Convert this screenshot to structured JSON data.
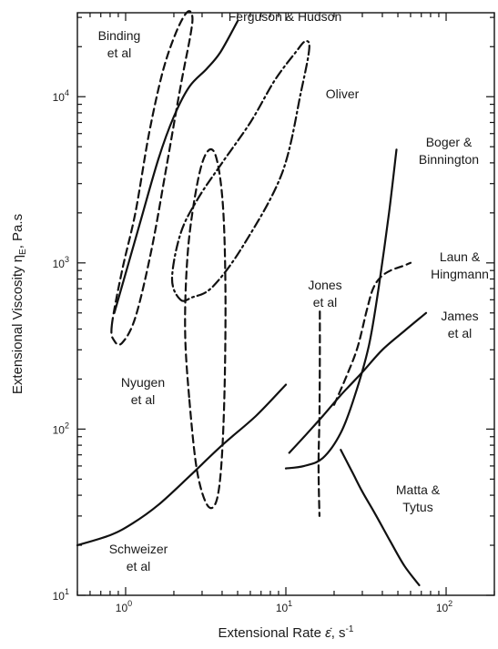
{
  "chart_data": {
    "type": "line",
    "x_scale": "log",
    "y_scale": "log",
    "xlim": [
      0.5,
      200
    ],
    "ylim": [
      10,
      32000
    ],
    "xlabel_main": "Extensional Rate ",
    "xlabel_symbol": "ε̇",
    "xlabel_unit": ", s",
    "xlabel_exp": "-1",
    "ylabel_main": "Extensional Viscosity η",
    "ylabel_sub": "E",
    "ylabel_unit": ", Pa.s",
    "x_ticks": [
      {
        "value": 1,
        "base": "10",
        "exp": "0"
      },
      {
        "value": 10,
        "base": "10",
        "exp": "1"
      },
      {
        "value": 100,
        "base": "10",
        "exp": "2"
      }
    ],
    "y_ticks": [
      {
        "value": 10,
        "base": "10",
        "exp": "1"
      },
      {
        "value": 100,
        "base": "10",
        "exp": "2"
      },
      {
        "value": 1000,
        "base": "10",
        "exp": "3"
      },
      {
        "value": 10000,
        "base": "10",
        "exp": "4"
      }
    ],
    "grid": false,
    "series": [
      {
        "name_lines": [
          "Binding",
          "et al"
        ],
        "style": "dashed",
        "closed": true,
        "points": [
          [
            0.82,
            420
          ],
          [
            0.85,
            340
          ],
          [
            0.95,
            330
          ],
          [
            1.15,
            470
          ],
          [
            1.45,
            1200
          ],
          [
            1.8,
            3800
          ],
          [
            2.2,
            11500
          ],
          [
            2.55,
            24000
          ],
          [
            2.6,
            31000
          ],
          [
            2.4,
            32000
          ],
          [
            2.05,
            24000
          ],
          [
            1.7,
            14000
          ],
          [
            1.4,
            6000
          ],
          [
            1.15,
            2000
          ],
          [
            0.95,
            900
          ],
          [
            0.82,
            420
          ]
        ]
      },
      {
        "name_lines": [
          "Ferguson & Hudson"
        ],
        "style": "solid",
        "closed": false,
        "points": [
          [
            0.85,
            500
          ],
          [
            1.2,
            1600
          ],
          [
            1.6,
            4200
          ],
          [
            2.0,
            7600
          ],
          [
            2.5,
            11500
          ],
          [
            3.2,
            14700
          ],
          [
            3.9,
            18500
          ],
          [
            5.0,
            28500
          ]
        ]
      },
      {
        "name_lines": [
          "Oliver"
        ],
        "style": "dashdot",
        "closed": true,
        "points": [
          [
            2.2,
            600
          ],
          [
            2.6,
            620
          ],
          [
            3.5,
            720
          ],
          [
            5.5,
            1300
          ],
          [
            9.5,
            3500
          ],
          [
            12.5,
            11000
          ],
          [
            14.0,
            19500
          ],
          [
            13.2,
            21500
          ],
          [
            11.5,
            18500
          ],
          [
            8.5,
            12500
          ],
          [
            6.0,
            7000
          ],
          [
            4.0,
            4000
          ],
          [
            2.8,
            2400
          ],
          [
            2.2,
            1500
          ],
          [
            1.95,
            800
          ],
          [
            2.2,
            600
          ]
        ]
      },
      {
        "name_lines": [
          "Nyugen",
          "et al"
        ],
        "style": "dashed",
        "closed": true,
        "points": [
          [
            2.5,
            150
          ],
          [
            2.8,
            55
          ],
          [
            3.3,
            34
          ],
          [
            3.8,
            42
          ],
          [
            4.1,
            120
          ],
          [
            4.2,
            600
          ],
          [
            4.05,
            2200
          ],
          [
            3.65,
            4400
          ],
          [
            3.2,
            4600
          ],
          [
            2.8,
            3000
          ],
          [
            2.45,
            1200
          ],
          [
            2.35,
            400
          ],
          [
            2.5,
            150
          ]
        ]
      },
      {
        "name_lines": [
          "Schweizer",
          "et al"
        ],
        "style": "solid",
        "closed": false,
        "points": [
          [
            0.5,
            20
          ],
          [
            0.8,
            23
          ],
          [
            1.1,
            27
          ],
          [
            1.6,
            35
          ],
          [
            2.5,
            52
          ],
          [
            4.0,
            80
          ],
          [
            6.5,
            120
          ],
          [
            10.0,
            185
          ]
        ]
      },
      {
        "name_lines": [
          "Jones",
          "et al"
        ],
        "style": "dashed",
        "closed": false,
        "points": [
          [
            16.3,
            510
          ],
          [
            16.3,
            280
          ],
          [
            16.2,
            120
          ],
          [
            16.0,
            60
          ],
          [
            16.2,
            30
          ]
        ]
      },
      {
        "name_lines": [
          "Boger &",
          "Binnington"
        ],
        "style": "solid",
        "closed": false,
        "points": [
          [
            10.0,
            58
          ],
          [
            13.0,
            60
          ],
          [
            17.0,
            67
          ],
          [
            22.0,
            95
          ],
          [
            27.0,
            160
          ],
          [
            33.0,
            320
          ],
          [
            38.0,
            720
          ],
          [
            44.0,
            2000
          ],
          [
            49.0,
            4800
          ]
        ]
      },
      {
        "name_lines": [
          "Laun &",
          "Hingmann"
        ],
        "style": "dashed",
        "closed": false,
        "points": [
          [
            20.0,
            140
          ],
          [
            24.0,
            210
          ],
          [
            28.0,
            310
          ],
          [
            32.0,
            520
          ],
          [
            35.0,
            700
          ],
          [
            39.0,
            820
          ],
          [
            45.0,
            900
          ],
          [
            54.0,
            960
          ],
          [
            60.0,
            1000
          ]
        ]
      },
      {
        "name_lines": [
          "James",
          "et al"
        ],
        "style": "solid",
        "closed": false,
        "points": [
          [
            10.5,
            72
          ],
          [
            13.0,
            90
          ],
          [
            17.0,
            120
          ],
          [
            22.0,
            160
          ],
          [
            30.0,
            220
          ],
          [
            40.0,
            300
          ],
          [
            55.0,
            390
          ],
          [
            75.0,
            500
          ]
        ]
      },
      {
        "name_lines": [
          "Matta &",
          "Tytus"
        ],
        "style": "solid",
        "closed": false,
        "points": [
          [
            22.0,
            75
          ],
          [
            26.0,
            55
          ],
          [
            30.0,
            42
          ],
          [
            36.0,
            31
          ],
          [
            45.0,
            21
          ],
          [
            55.0,
            15
          ],
          [
            68.0,
            11.5
          ]
        ]
      }
    ]
  }
}
